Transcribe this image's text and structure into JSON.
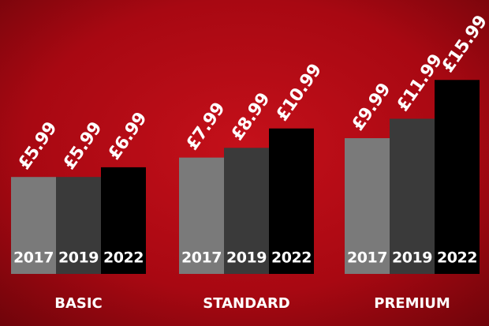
{
  "chart_data": {
    "type": "bar",
    "categories": [
      "BASIC",
      "STANDARD",
      "PREMIUM"
    ],
    "series": [
      {
        "name": "2017",
        "color": "#7a7a7a",
        "values": [
          5.99,
          7.99,
          9.99
        ],
        "value_labels": [
          "£5.99",
          "£7.99",
          "£9.99"
        ]
      },
      {
        "name": "2019",
        "color": "#3a3a3a",
        "values": [
          5.99,
          8.99,
          11.99
        ],
        "value_labels": [
          "£5.99",
          "£8.99",
          "£11.99"
        ]
      },
      {
        "name": "2022",
        "color": "#000000",
        "values": [
          6.99,
          10.99,
          15.99
        ],
        "value_labels": [
          "£6.99",
          "£10.99",
          "£15.99"
        ]
      }
    ],
    "ylim": [
      -4,
      20
    ]
  }
}
